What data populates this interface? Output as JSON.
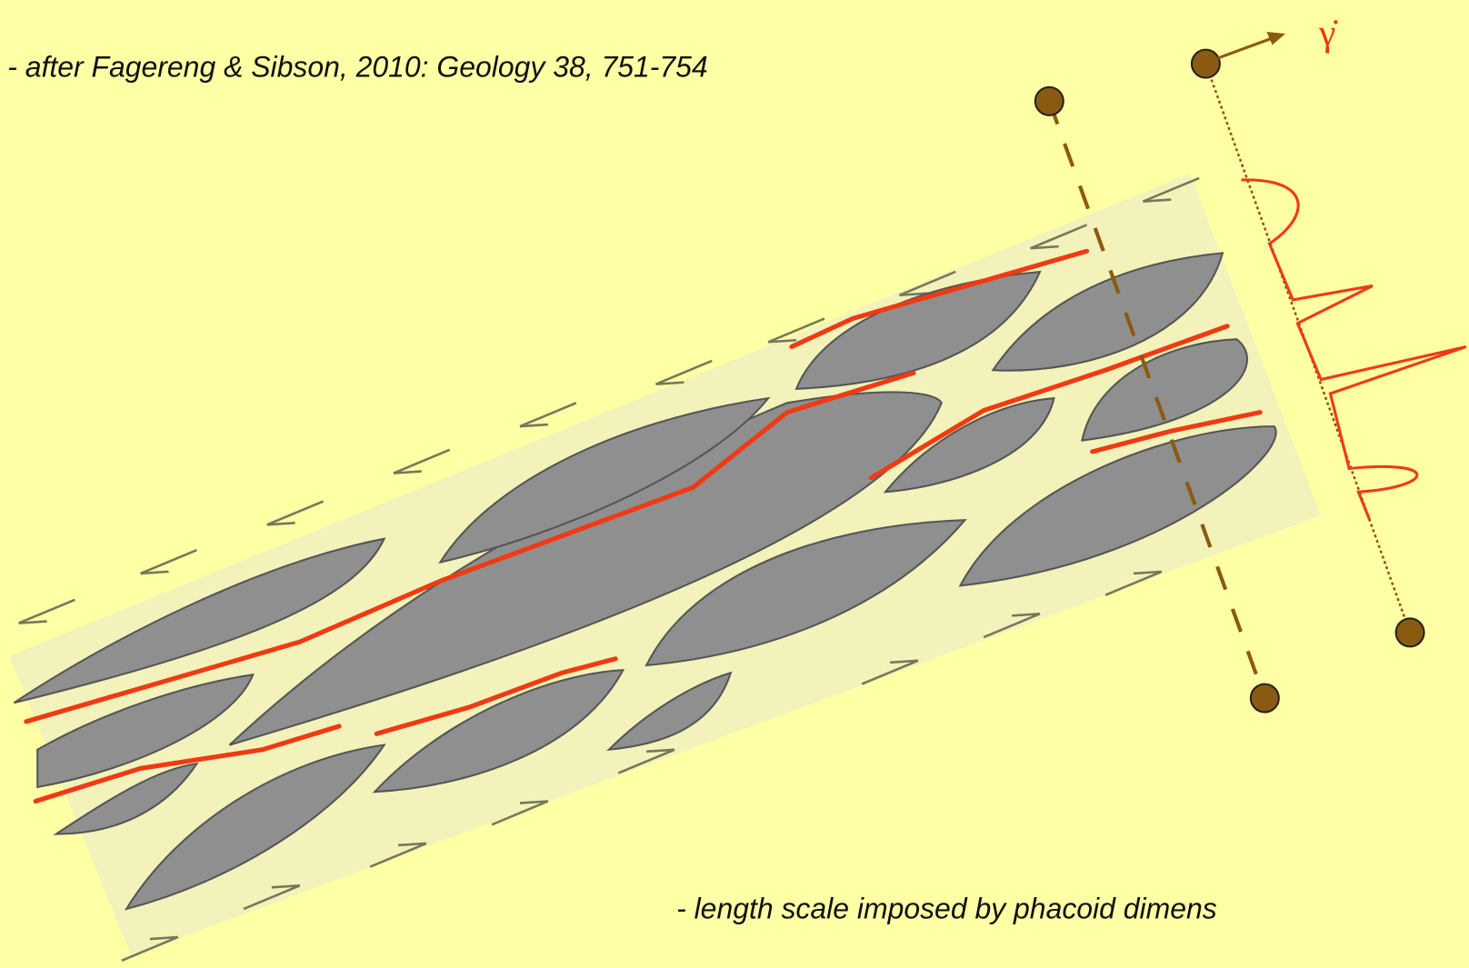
{
  "reference": "- after Fagereng & Sibson, 2010: Geology 38, 751-754",
  "caption": "- length scale imposed by phacoid dimens",
  "strain_rate_symbol": "γ̇"
}
